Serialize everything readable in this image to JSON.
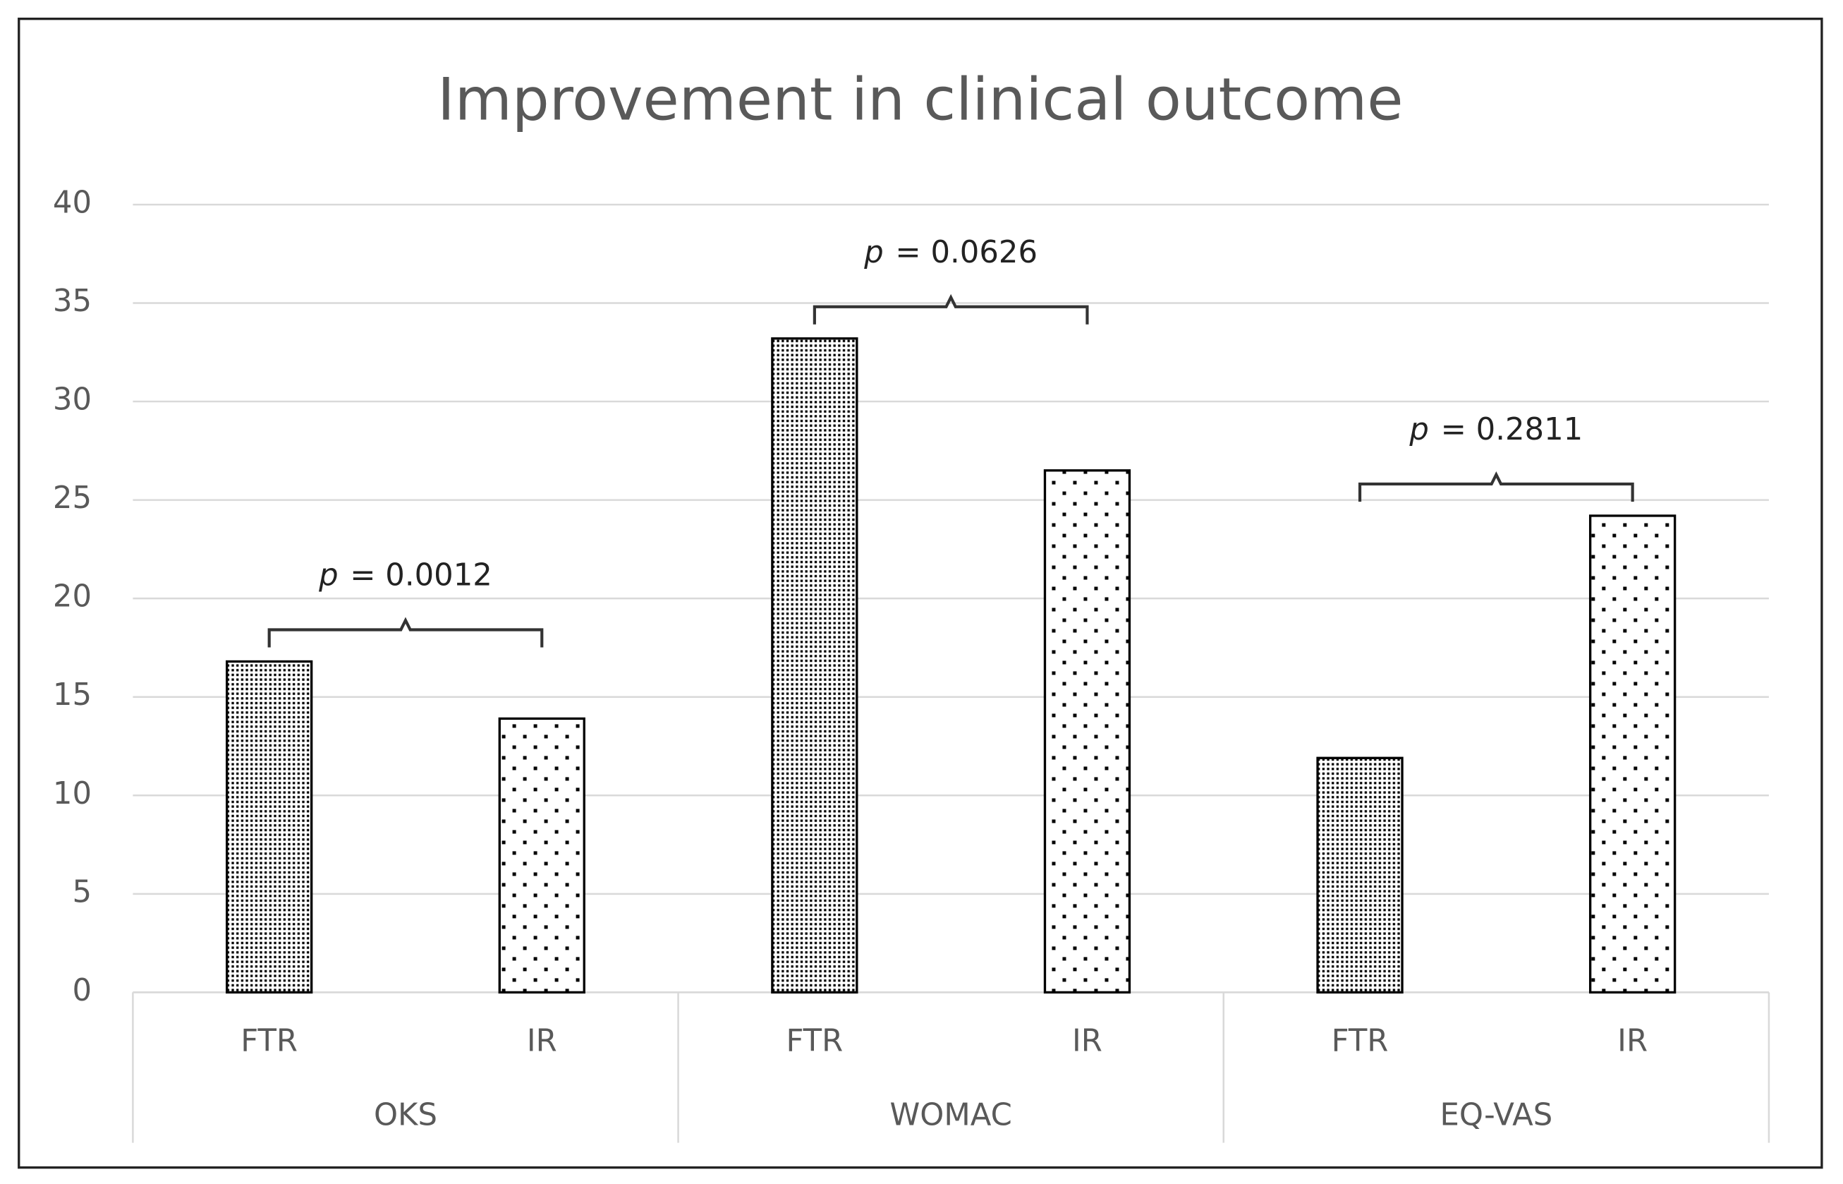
{
  "chart_data": {
    "type": "bar",
    "title": "Improvement in clinical outcome",
    "categories": [
      "OKS",
      "WOMAC",
      "EQ-VAS"
    ],
    "series": [
      {
        "name": "FTR",
        "pattern": "dense-dots",
        "color": "#000000",
        "values": [
          16.8,
          33.2,
          11.9
        ]
      },
      {
        "name": "IR",
        "pattern": "sparse-dots",
        "color": "#000000",
        "values": [
          13.9,
          26.5,
          24.2
        ]
      }
    ],
    "annotations": [
      {
        "symbol": "p",
        "text": "= 0.0012"
      },
      {
        "symbol": "p",
        "text": "= 0.0626"
      },
      {
        "symbol": "p",
        "text": "= 0.2811"
      }
    ],
    "ylim": [
      0,
      40
    ],
    "yticks": [
      0,
      5,
      10,
      15,
      20,
      25,
      30,
      35,
      40
    ],
    "grid": true
  }
}
